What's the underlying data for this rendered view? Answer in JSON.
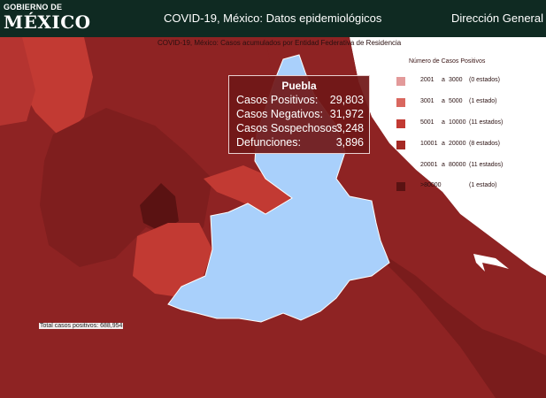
{
  "header": {
    "logo_line1": "GOBIERNO DE",
    "logo_line2": "MÉXICO",
    "title": "COVID-19, México: Datos epidemiológicos",
    "section": "Dirección General"
  },
  "map": {
    "caption": "COVID-19, México: Casos acumulados por Entidad Federativa de Residencia",
    "selected_state": "Puebla",
    "total_label": "Total casos positivos: 688,954",
    "colors": {
      "background_dark": "#8e2323",
      "darker": "#6b1616",
      "darkest": "#5a1212",
      "medium": "#c23a33",
      "highlight": "#a9d0fb",
      "ocean_white": "#ffffff"
    }
  },
  "legend": {
    "title": "Número de Casos Positivos",
    "items": [
      {
        "from": "2001",
        "a": "a",
        "to": "3000",
        "count": "(0 estados)",
        "color": "#e39a9a"
      },
      {
        "from": "3001",
        "a": "a",
        "to": "5000",
        "count": "(1 estado)",
        "color": "#d9675f"
      },
      {
        "from": "5001",
        "a": "a",
        "to": "10000",
        "count": "(11 estados)",
        "color": "#c23a33"
      },
      {
        "from": "10001",
        "a": "a",
        "to": "20000",
        "count": "(8 estados)",
        "color": "#a52a25"
      },
      {
        "from": "20001",
        "a": "a",
        "to": "80000",
        "count": "(11 estados)",
        "color": "#8e2323"
      },
      {
        "from": ">80000",
        "a": "",
        "to": "",
        "count": "(1 estado)",
        "color": "#5a1212"
      }
    ]
  },
  "tooltip": {
    "title": "Puebla",
    "rows": [
      {
        "label": "Casos Positivos:",
        "value": "29,803"
      },
      {
        "label": "Casos Negativos:",
        "value": "31,972"
      },
      {
        "label": "Casos Sospechosos:",
        "value": "3,248"
      },
      {
        "label": "Defunciones:",
        "value": "3,896"
      }
    ]
  }
}
